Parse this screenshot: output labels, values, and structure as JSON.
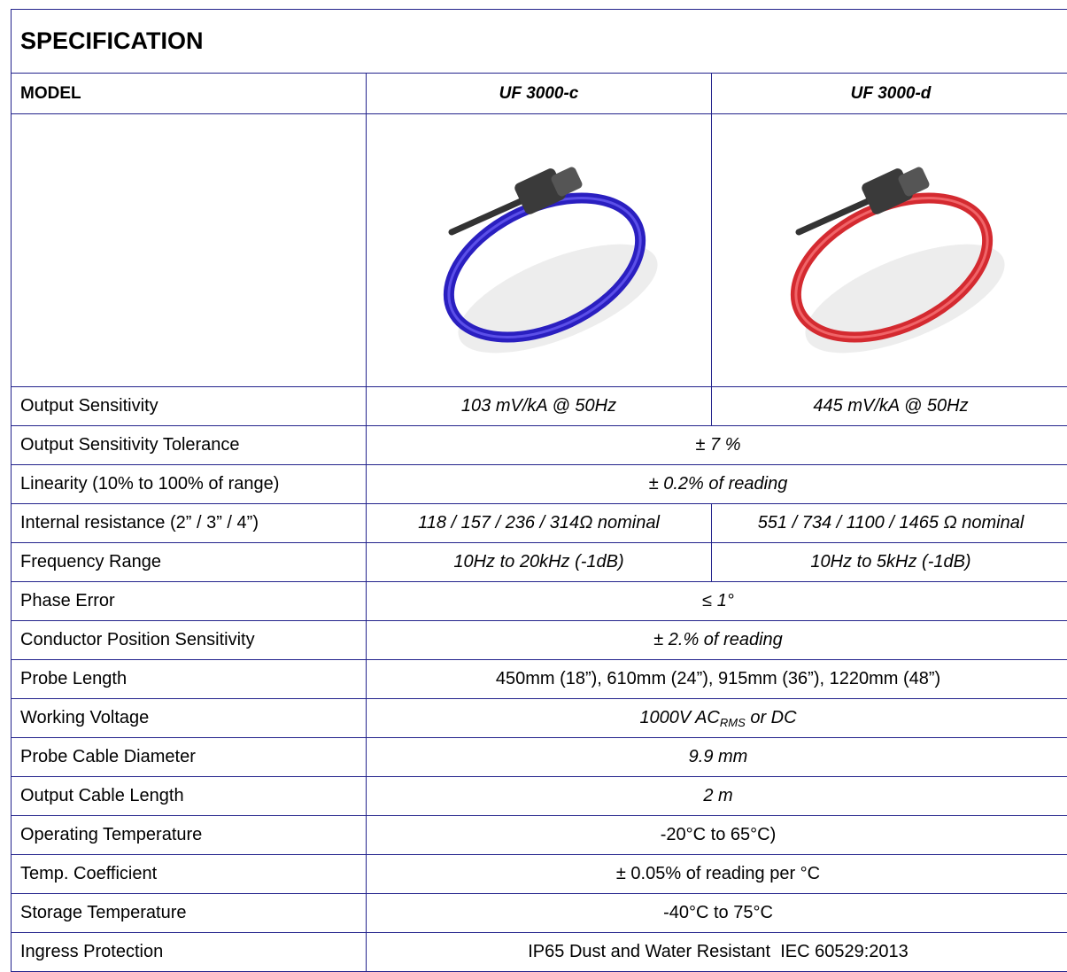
{
  "header": {
    "title": "SPECIFICATION"
  },
  "table": {
    "columns": [
      "MODEL",
      "UF 3000-c",
      "UF 3000-d"
    ],
    "rows": [
      {
        "label": "Output Sensitivity",
        "values": [
          "103 mV/kA @ 50Hz",
          "445 mV/kA @ 50Hz"
        ]
      },
      {
        "label": "Output Sensitivity Tolerance",
        "values": [
          "± 7 %"
        ]
      },
      {
        "label": "Linearity (10% to 100% of range)",
        "values": [
          "± 0.2% of reading"
        ]
      },
      {
        "label": "Internal resistance (2” / 3” / 4”)",
        "values": [
          "118 / 157 / 236 / 314Ω nominal",
          "551 / 734 / 1100 / 1465 Ω nominal"
        ]
      },
      {
        "label": "Frequency Range",
        "values": [
          "10Hz to 20kHz (-1dB)",
          "10Hz to 5kHz (-1dB)"
        ]
      },
      {
        "label": "Phase Error",
        "values": [
          "≤ 1°"
        ]
      },
      {
        "label": "Conductor Position Sensitivity",
        "values": [
          "± 2.% of reading"
        ]
      },
      {
        "label": "Probe Length",
        "values": [
          "450mm (18”), 610mm (24”), 915mm (36”), 1220mm (48”)"
        ]
      },
      {
        "label": "Working Voltage",
        "values": [
          {
            "text": "1000V AC",
            "sub": "RMS",
            "after": " or DC"
          }
        ]
      },
      {
        "label": "Probe Cable Diameter",
        "values": [
          "9.9 mm"
        ]
      },
      {
        "label": "Output Cable Length",
        "values": [
          "2 m"
        ]
      },
      {
        "label": "Operating Temperature",
        "values": [
          "-20°C to 65°C)"
        ]
      },
      {
        "label": "Temp. Coefficient",
        "values": [
          "± 0.05% of reading per °C"
        ]
      },
      {
        "label": "Storage Temperature",
        "values": [
          "-40°C to 75°C"
        ]
      },
      {
        "label": "Ingress Protection",
        "values": [
          "IP65 Dust and Water Resistant  IEC 60529:2013"
        ]
      }
    ]
  }
}
